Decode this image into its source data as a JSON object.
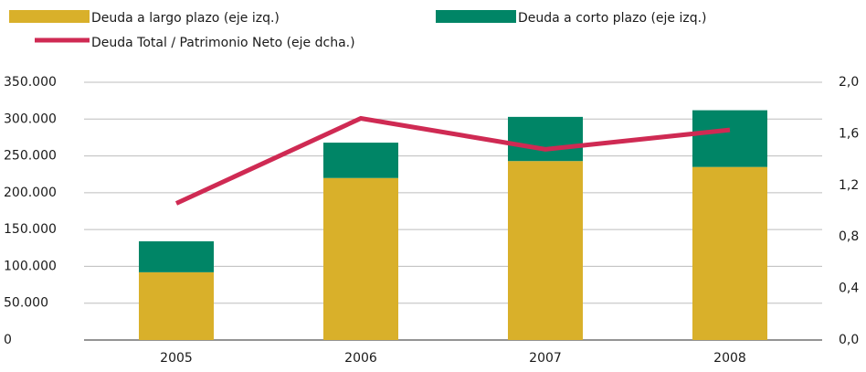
{
  "chart_data": {
    "type": "bar",
    "categories": [
      "2005",
      "2006",
      "2007",
      "2008"
    ],
    "series": [
      {
        "name": "Deuda a largo plazo (eje izq.)",
        "color": "#d9b02a",
        "values": [
          92000,
          220000,
          243000,
          235000
        ]
      },
      {
        "name": "Deuda a corto plazo (eje izq.)",
        "color": "#008566",
        "values": [
          42000,
          48000,
          60000,
          77000
        ]
      },
      {
        "name": "Deuda Total / Patrimonio Neto (eje dcha.)",
        "color": "#cf2a53",
        "values": [
          1.06,
          1.72,
          1.48,
          1.63
        ],
        "axis": "y2",
        "type": "line"
      }
    ],
    "ylim": [
      0,
      350000
    ],
    "yticks": [
      {
        "value": 0,
        "label": "0"
      },
      {
        "value": 50000,
        "label": "50.000"
      },
      {
        "value": 100000,
        "label": "100.000"
      },
      {
        "value": 150000,
        "label": "150.000"
      },
      {
        "value": 200000,
        "label": "200.000"
      },
      {
        "value": 250000,
        "label": "250.000"
      },
      {
        "value": 300000,
        "label": "300.000"
      },
      {
        "value": 350000,
        "label": "350.000"
      }
    ],
    "y2lim": [
      0,
      2
    ],
    "y2ticks": [
      {
        "value": 0,
        "label": "0,0"
      },
      {
        "value": 0.4,
        "label": "0,4"
      },
      {
        "value": 0.8,
        "label": "0,8"
      },
      {
        "value": 1.2,
        "label": "1,2"
      },
      {
        "value": 1.6,
        "label": "1,6"
      },
      {
        "value": 2,
        "label": "2,0"
      }
    ],
    "grid": true
  }
}
